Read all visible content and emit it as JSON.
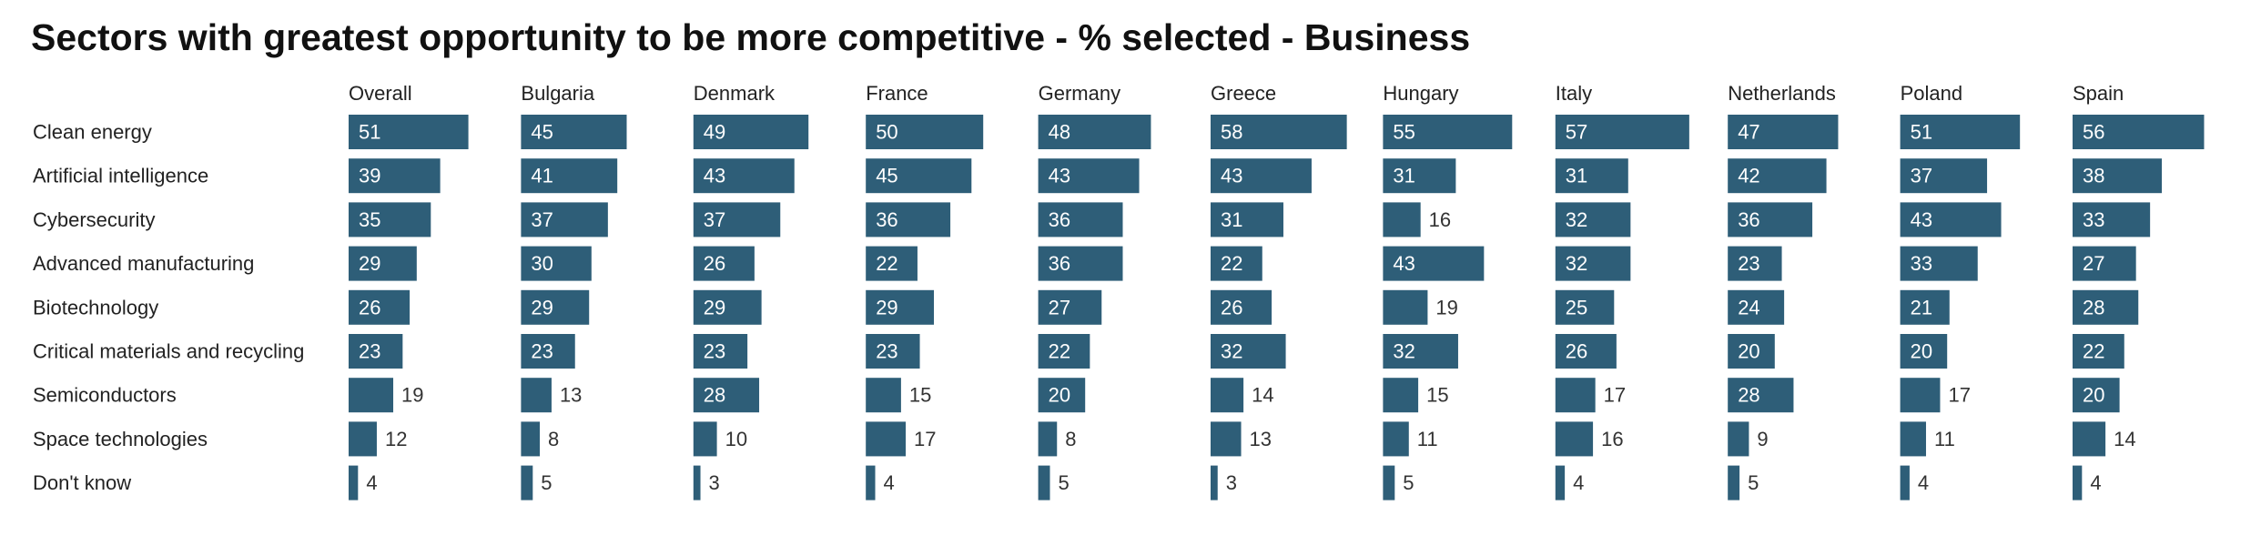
{
  "chart_data": {
    "type": "bar",
    "orientation": "horizontal",
    "layout": "small-multiples",
    "title": "Sectors with greatest opportunity to be more competitive - % selected - Business",
    "bar_color": "#2e5e78",
    "label_on_bar_color": "#ffffff",
    "label_off_bar_color": "#333333",
    "categories": [
      "Clean energy",
      "Artificial intelligence",
      "Cybersecurity",
      "Advanced manufacturing",
      "Biotechnology",
      "Critical materials and recycling",
      "Semiconductors",
      "Space technologies",
      "Don't know"
    ],
    "series": [
      {
        "name": "Overall",
        "values": [
          51,
          39,
          35,
          29,
          26,
          23,
          19,
          12,
          4
        ]
      },
      {
        "name": "Bulgaria",
        "values": [
          45,
          41,
          37,
          30,
          29,
          23,
          13,
          8,
          5
        ]
      },
      {
        "name": "Denmark",
        "values": [
          49,
          43,
          37,
          26,
          29,
          23,
          28,
          10,
          3
        ]
      },
      {
        "name": "France",
        "values": [
          50,
          45,
          36,
          22,
          29,
          23,
          15,
          17,
          4
        ]
      },
      {
        "name": "Germany",
        "values": [
          48,
          43,
          36,
          36,
          27,
          22,
          20,
          8,
          5
        ]
      },
      {
        "name": "Greece",
        "values": [
          58,
          43,
          31,
          22,
          26,
          32,
          14,
          13,
          3
        ]
      },
      {
        "name": "Hungary",
        "values": [
          55,
          31,
          16,
          43,
          19,
          32,
          15,
          11,
          5
        ]
      },
      {
        "name": "Italy",
        "values": [
          57,
          31,
          32,
          32,
          25,
          26,
          17,
          16,
          4
        ]
      },
      {
        "name": "Netherlands",
        "values": [
          47,
          42,
          36,
          23,
          24,
          20,
          28,
          9,
          5
        ]
      },
      {
        "name": "Poland",
        "values": [
          51,
          37,
          43,
          33,
          21,
          20,
          17,
          11,
          4
        ]
      },
      {
        "name": "Spain",
        "values": [
          56,
          38,
          33,
          27,
          28,
          22,
          20,
          14,
          4
        ]
      }
    ]
  }
}
